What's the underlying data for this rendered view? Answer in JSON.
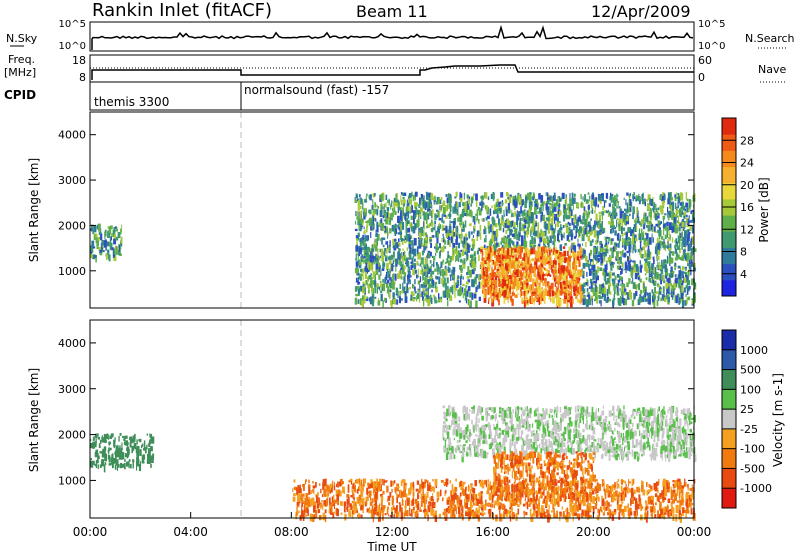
{
  "header": {
    "station": "Rankin Inlet (fitACF)",
    "beam": "Beam 11",
    "date": "12/Apr/2009"
  },
  "left_labels": {
    "nsky": "N.Sky",
    "freq_line1": "Freq.",
    "freq_line2": "[MHz]",
    "cpid": "CPID"
  },
  "right_labels": {
    "nsearch": "N.Search",
    "nave": "Nave"
  },
  "top_strip": {
    "noise_ticks_left": [
      "10^5",
      "10^0"
    ],
    "noise_ticks_right": [
      "10^5",
      "10^0"
    ],
    "freq_ticks_left": [
      "18",
      "8"
    ],
    "nave_ticks_right": [
      "60",
      "0"
    ]
  },
  "cpid_labels": [
    "themis 3300",
    "normalsound (fast) -157"
  ],
  "time_axis": {
    "ticks": [
      "00:00",
      "04:00",
      "08:00",
      "12:00",
      "16:00",
      "20:00",
      "00:00"
    ],
    "label": "Time UT"
  },
  "chart_data": [
    {
      "type": "heatmap",
      "name": "power-panel",
      "ylabel": "Slant Range [km]",
      "yticks": [
        "1000",
        "2000",
        "3000",
        "4000"
      ],
      "ylim": [
        180,
        4500
      ],
      "xlim": [
        "00:00",
        "24:00"
      ],
      "colorbar_label": "Power [dB]",
      "colorbar_ticks": [
        "4",
        "8",
        "12",
        "16",
        "20",
        "24",
        "28"
      ],
      "colorbar_colors": [
        "#1f24e0",
        "#2b4fc0",
        "#2f7a9a",
        "#3f9a6f",
        "#5fb04a",
        "#a6c93a",
        "#e8d83b",
        "#f5b030",
        "#f58a1c",
        "#ef5a16",
        "#e02a10"
      ],
      "features": [
        {
          "time_range": [
            "00:00",
            "01:15"
          ],
          "range_km": [
            1300,
            2000
          ],
          "level": "8-16 dB"
        },
        {
          "time_range": [
            "10:30",
            "24:00"
          ],
          "range_km": [
            300,
            2700
          ],
          "level": "4-28 dB"
        },
        {
          "time_range": [
            "15:30",
            "19:30"
          ],
          "range_km": [
            500,
            1500
          ],
          "level": "20-28 dB"
        }
      ]
    },
    {
      "type": "heatmap",
      "name": "velocity-panel",
      "ylabel": "Slant Range [km]",
      "yticks": [
        "1000",
        "2000",
        "3000",
        "4000"
      ],
      "ylim": [
        180,
        4500
      ],
      "xlim": [
        "00:00",
        "24:00"
      ],
      "colorbar_label": "Velocity [m s-1]",
      "colorbar_ticks": [
        "1000",
        "500",
        "100",
        "25",
        "-25",
        "-100",
        "-500",
        "-1000"
      ],
      "colorbar_colors": [
        "#1a2ca8",
        "#2d5aa8",
        "#3f8e5a",
        "#58c04a",
        "#c8c8c8",
        "#f5a020",
        "#f07a10",
        "#e84a10",
        "#e01a10"
      ],
      "features": [
        {
          "time_range": [
            "00:00",
            "02:30"
          ],
          "range_km": [
            1300,
            2000
          ],
          "level": "100 to 500"
        },
        {
          "time_range": [
            "08:00",
            "24:00"
          ],
          "range_km": [
            200,
            1000
          ],
          "level": "-100 to -500"
        },
        {
          "time_range": [
            "16:00",
            "20:00"
          ],
          "range_km": [
            600,
            1600
          ],
          "level": "-500 to -1000"
        },
        {
          "time_range": [
            "14:00",
            "24:00"
          ],
          "range_km": [
            1500,
            2600
          ],
          "level": "-25 to 25"
        }
      ]
    }
  ]
}
